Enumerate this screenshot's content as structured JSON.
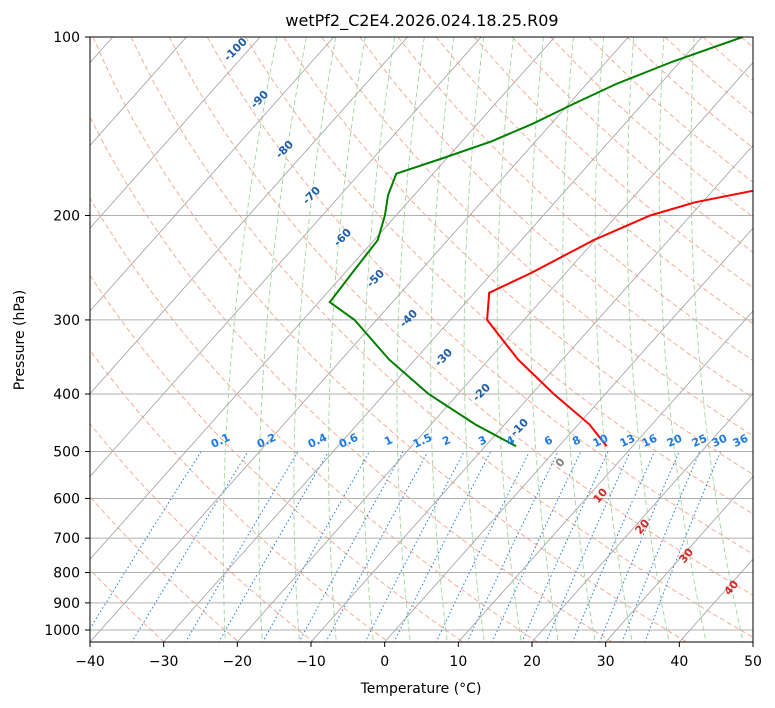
{
  "chart_data": {
    "type": "line",
    "title": "wetPf2_C2E4.2026.024.18.25.R09",
    "xlabel": "Temperature (°C)",
    "ylabel": "Pressure (hPa)",
    "xlim": [
      -40,
      50
    ],
    "ylim": [
      1050,
      100
    ],
    "x_ticks": [
      -40,
      -30,
      -20,
      -10,
      0,
      10,
      20,
      30,
      40,
      50
    ],
    "y_ticks": [
      100,
      200,
      300,
      400,
      500,
      600,
      700,
      800,
      900,
      1000
    ],
    "series": [
      {
        "name": "Temperature",
        "color": "#ff0000",
        "points": [
          {
            "p": 100,
            "t": 1.8
          },
          {
            "p": 110,
            "t": 4.3
          },
          {
            "p": 120,
            "t": 7.2
          },
          {
            "p": 130,
            "t": 8.7
          },
          {
            "p": 140,
            "t": 8.0
          },
          {
            "p": 150,
            "t": 6.8
          },
          {
            "p": 160,
            "t": 5.2
          },
          {
            "p": 170,
            "t": 2.6
          },
          {
            "p": 180,
            "t": -3.2
          },
          {
            "p": 190,
            "t": -11.0
          },
          {
            "p": 200,
            "t": -15.5
          },
          {
            "p": 220,
            "t": -20.2
          },
          {
            "p": 250,
            "t": -24.7
          },
          {
            "p": 270,
            "t": -28.0
          },
          {
            "p": 300,
            "t": -25.0
          },
          {
            "p": 350,
            "t": -16.0
          },
          {
            "p": 400,
            "t": -7.0
          },
          {
            "p": 450,
            "t": 1.5
          },
          {
            "p": 490,
            "t": 6.5
          }
        ]
      },
      {
        "name": "Dewpoint",
        "color": "#008000",
        "points": [
          {
            "p": 100,
            "t": -24.5
          },
          {
            "p": 110,
            "t": -31.0
          },
          {
            "p": 120,
            "t": -36.0
          },
          {
            "p": 130,
            "t": -39.5
          },
          {
            "p": 140,
            "t": -42.5
          },
          {
            "p": 150,
            "t": -46.0
          },
          {
            "p": 160,
            "t": -50.5
          },
          {
            "p": 170,
            "t": -55.0
          },
          {
            "p": 185,
            "t": -53.5
          },
          {
            "p": 200,
            "t": -51.5
          },
          {
            "p": 220,
            "t": -49.5
          },
          {
            "p": 250,
            "t": -49.0
          },
          {
            "p": 280,
            "t": -48.5
          },
          {
            "p": 300,
            "t": -43.0
          },
          {
            "p": 350,
            "t": -33.5
          },
          {
            "p": 400,
            "t": -24.0
          },
          {
            "p": 450,
            "t": -14.0
          },
          {
            "p": 490,
            "t": -5.8
          }
        ]
      }
    ],
    "isotherm_labels": [
      "-100",
      "-90",
      "-80",
      "-70",
      "-60",
      "-50",
      "-40",
      "-30",
      "-20",
      "-10"
    ],
    "mixing_ratio_labels": [
      "0.1",
      "0.2",
      "0.4",
      "0.6",
      "1",
      "1.5",
      "2",
      "3",
      "4",
      "6",
      "8",
      "10",
      "13",
      "16",
      "20",
      "25",
      "30",
      "36"
    ],
    "moist_adiabat_labels": [
      "0",
      "10",
      "20",
      "30",
      "40"
    ]
  }
}
